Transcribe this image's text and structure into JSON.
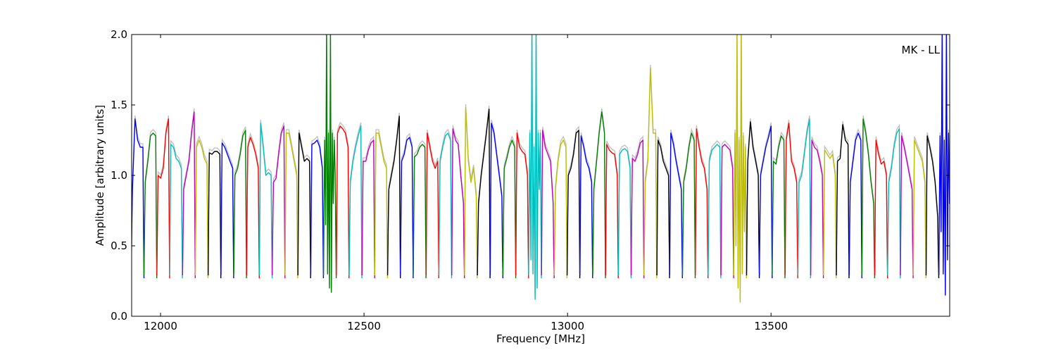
{
  "chart_data": {
    "type": "line",
    "title": "",
    "annotation": "MK - LL",
    "xlabel": "Frequency [MHz]",
    "ylabel": "Amplitude [arbitrary units]",
    "xlim": [
      11929,
      13939
    ],
    "ylim": [
      0.0,
      2.0
    ],
    "xticks": [
      12000,
      12500,
      13000,
      13500
    ],
    "xtick_labels": [
      "12000",
      "12500",
      "13000",
      "13500"
    ],
    "yticks": [
      0.0,
      0.5,
      1.0,
      1.5,
      2.0
    ],
    "ytick_labels": [
      "0.0",
      "0.5",
      "1.0",
      "1.5",
      "2.0"
    ],
    "grid": false,
    "segment_start_mhz": 11928,
    "segment_width_mhz": 31.5,
    "edge_amplitude": 0.27,
    "color_cycle": [
      "#0000ff",
      "#008000",
      "#ff0000",
      "#00bfbf",
      "#bf00bf",
      "#bfbf00",
      "#000000"
    ],
    "reference_color": "#bfbfbf",
    "segments": [
      [
        0.9,
        1.4,
        1.25,
        1.2,
        1.2
      ],
      [
        0.95,
        1.1,
        1.28,
        1.3,
        1.28
      ],
      [
        1.0,
        0.98,
        1.05,
        1.3,
        1.4
      ],
      [
        1.22,
        1.2,
        1.12,
        1.1,
        1.05
      ],
      [
        0.9,
        1.0,
        1.1,
        1.3,
        1.45
      ],
      [
        1.2,
        1.25,
        1.2,
        1.12,
        1.08
      ],
      [
        1.16,
        1.15,
        1.17,
        1.17,
        1.15
      ],
      [
        1.23,
        1.2,
        1.15,
        1.1,
        1.05
      ],
      [
        1.0,
        1.05,
        1.15,
        1.28,
        1.32
      ],
      [
        1.2,
        1.27,
        1.22,
        1.15,
        1.05
      ],
      [
        1.37,
        1.2,
        1.0,
        1.02,
        1.0
      ],
      [
        0.95,
        0.98,
        1.15,
        1.3,
        1.35
      ],
      [
        1.3,
        1.3,
        1.2,
        1.1,
        1.0
      ],
      [
        1.3,
        1.2,
        1.1,
        1.12,
        1.1
      ],
      [
        1.22,
        1.23,
        1.25,
        1.2,
        1.05
      ],
      [
        1.25,
        0.65,
        2.05,
        0.3,
        1.3,
        0.2,
        2.05,
        0.17,
        1.3,
        0.8,
        1.25,
        1.0
      ],
      [
        1.3,
        1.35,
        1.33,
        1.3,
        1.2
      ],
      [
        0.95,
        1.1,
        1.2,
        1.28,
        1.35
      ],
      [
        1.1,
        1.1,
        1.18,
        1.23,
        1.25
      ],
      [
        1.3,
        1.3,
        1.2,
        1.1,
        1.05
      ],
      [
        0.9,
        1.0,
        1.1,
        1.25,
        1.42
      ],
      [
        1.1,
        1.15,
        1.25,
        1.27,
        1.2
      ],
      [
        1.13,
        1.15,
        1.2,
        1.22,
        1.2
      ],
      [
        1.3,
        1.2,
        1.1,
        1.05,
        1.1
      ],
      [
        1.1,
        1.2,
        1.28,
        1.3,
        1.25
      ],
      [
        1.33,
        1.25,
        1.22,
        1.0,
        0.8
      ],
      [
        1.48,
        1.1,
        0.95,
        1.05,
        0.85
      ],
      [
        0.8,
        1.0,
        1.15,
        1.3,
        1.47
      ],
      [
        1.37,
        1.3,
        1.15,
        1.0,
        0.85
      ],
      [
        1.05,
        1.12,
        1.2,
        1.25,
        1.2
      ],
      [
        1.3,
        1.2,
        1.17,
        1.15,
        1.0
      ],
      [
        1.3,
        0.4,
        2.05,
        0.3,
        1.2,
        0.12,
        2.05,
        0.2,
        1.3,
        0.9,
        1.3
      ],
      [
        1.32,
        1.2,
        1.15,
        1.1,
        0.8
      ],
      [
        0.9,
        1.1,
        1.22,
        1.25,
        1.2
      ],
      [
        1.0,
        1.05,
        1.15,
        1.3,
        1.32
      ],
      [
        1.28,
        1.2,
        1.1,
        1.05,
        0.95
      ],
      [
        0.9,
        1.1,
        1.3,
        1.45,
        1.3
      ],
      [
        1.22,
        1.18,
        1.16,
        1.15,
        1.0
      ],
      [
        1.15,
        1.18,
        1.19,
        1.17,
        1.05
      ],
      [
        1.12,
        1.1,
        1.15,
        1.23,
        1.25
      ],
      [
        0.95,
        1.1,
        1.76,
        1.3,
        1.3
      ],
      [
        1.25,
        1.2,
        1.1,
        1.05,
        1.0
      ],
      [
        1.3,
        1.22,
        1.1,
        1.0,
        0.9
      ],
      [
        0.95,
        1.05,
        1.2,
        1.3,
        1.25
      ],
      [
        1.33,
        1.2,
        1.1,
        1.05,
        0.9
      ],
      [
        1.1,
        1.18,
        1.2,
        1.22,
        1.2
      ],
      [
        1.2,
        1.22,
        1.2,
        1.18,
        1.05
      ],
      [
        1.3,
        0.5,
        2.05,
        0.2,
        1.25,
        0.1,
        2.05,
        0.3,
        1.28,
        0.6,
        1.2
      ],
      [
        1.1,
        1.38,
        1.2,
        1.1,
        1.0
      ],
      [
        1.0,
        1.1,
        1.2,
        1.27,
        1.35
      ],
      [
        1.1,
        1.08,
        1.2,
        1.28,
        1.25
      ],
      [
        1.25,
        1.37,
        1.1,
        1.05,
        0.95
      ],
      [
        0.95,
        1.0,
        1.15,
        1.3,
        1.4
      ],
      [
        1.25,
        1.2,
        1.18,
        1.1,
        1.0
      ],
      [
        1.18,
        1.15,
        1.12,
        1.15,
        1.0
      ],
      [
        1.1,
        1.12,
        1.36,
        1.25,
        1.22
      ],
      [
        0.95,
        1.1,
        1.25,
        1.3,
        1.25
      ],
      [
        1.4,
        1.3,
        1.15,
        0.95,
        0.8
      ],
      [
        1.25,
        1.15,
        1.08,
        1.1,
        1.0
      ],
      [
        0.95,
        1.05,
        1.2,
        1.3,
        1.33
      ],
      [
        1.28,
        1.2,
        1.1,
        1.0,
        0.9
      ],
      [
        1.25,
        1.2,
        1.15,
        1.1,
        0.95
      ],
      [
        1.28,
        1.2,
        1.1,
        0.95,
        0.7
      ],
      [
        1.28,
        0.6,
        2.05,
        0.3,
        1.25,
        0.15,
        2.05,
        0.4,
        1.3,
        0.8,
        1.28
      ]
    ]
  }
}
